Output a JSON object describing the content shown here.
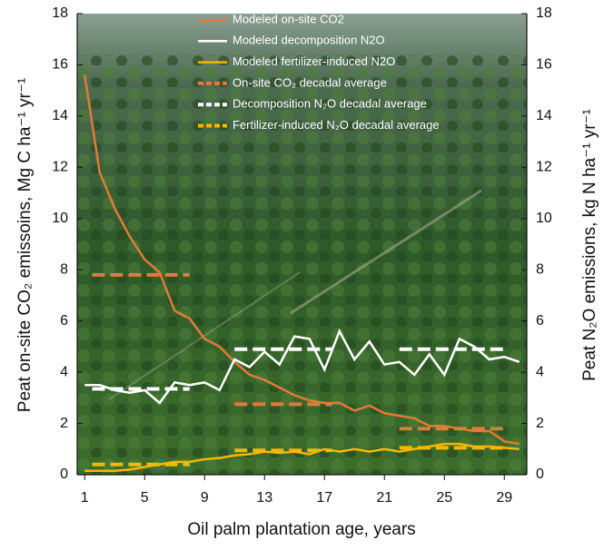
{
  "chart_data": {
    "type": "line",
    "xlabel": "Oil palm plantation age, years",
    "ylabel": "Peat on-site CO₂ emissoins, Mg C ha⁻¹ yr⁻¹",
    "y2label": "Peat N₂O emissions, kg N ha⁻¹ yr⁻¹",
    "x": [
      1,
      2,
      3,
      4,
      5,
      6,
      7,
      8,
      9,
      10,
      11,
      12,
      13,
      14,
      15,
      16,
      17,
      18,
      19,
      20,
      21,
      22,
      23,
      24,
      25,
      26,
      27,
      28,
      29,
      30
    ],
    "xlim": [
      0.5,
      30.5
    ],
    "xticks": [
      1,
      5,
      9,
      13,
      17,
      21,
      25,
      29
    ],
    "ylim": [
      0,
      18
    ],
    "yticks": [
      0,
      2,
      4,
      6,
      8,
      10,
      12,
      14,
      16,
      18
    ],
    "y2lim": [
      0,
      18
    ],
    "y2ticks": [
      0,
      2,
      4,
      6,
      8,
      10,
      12,
      14,
      16,
      18
    ],
    "series": [
      {
        "name": "Modeled on-site CO2",
        "color": "#e07b39",
        "style": "solid",
        "values": [
          15.6,
          11.8,
          10.4,
          9.3,
          8.4,
          7.9,
          6.4,
          6.1,
          5.3,
          5.0,
          4.4,
          3.9,
          3.7,
          3.4,
          3.1,
          2.9,
          2.8,
          2.8,
          2.5,
          2.7,
          2.4,
          2.3,
          2.2,
          1.9,
          1.9,
          1.8,
          1.7,
          1.7,
          1.3,
          1.2
        ]
      },
      {
        "name": "Modeled decomposition N2O",
        "color": "#ffffff",
        "style": "solid",
        "axis": "y2",
        "values": [
          3.5,
          3.5,
          3.3,
          3.2,
          3.3,
          2.8,
          3.6,
          3.5,
          3.6,
          3.3,
          4.5,
          4.2,
          4.8,
          4.3,
          5.4,
          5.3,
          4.1,
          5.6,
          4.5,
          5.2,
          4.3,
          4.4,
          3.9,
          4.7,
          3.9,
          5.3,
          5.0,
          4.5,
          4.6,
          4.4
        ]
      },
      {
        "name": "Modeled fertilizer-induced N2O",
        "color": "#f5b800",
        "style": "solid",
        "axis": "y2",
        "values": [
          0.15,
          0.15,
          0.15,
          0.2,
          0.3,
          0.4,
          0.5,
          0.5,
          0.6,
          0.65,
          0.75,
          0.8,
          0.9,
          0.85,
          0.9,
          0.8,
          1.0,
          0.9,
          1.0,
          0.9,
          1.0,
          0.9,
          1.0,
          1.1,
          1.2,
          1.2,
          1.1,
          1.1,
          1.05,
          1.0
        ]
      },
      {
        "name": "On-site CO₂ decadal average",
        "color": "#e07b39",
        "style": "dashed",
        "x": [
          1.5,
          8,
          null,
          11,
          17.5,
          null,
          22,
          29
        ],
        "values": [
          7.8,
          7.8,
          null,
          2.75,
          2.75,
          null,
          1.8,
          1.8
        ]
      },
      {
        "name": "Decomposition N₂O decadal average",
        "color": "#ffffff",
        "style": "dashed",
        "axis": "y2",
        "x": [
          1.5,
          8,
          null,
          11,
          17.5,
          null,
          22,
          29
        ],
        "values": [
          3.35,
          3.35,
          null,
          4.9,
          4.9,
          null,
          4.9,
          4.9
        ]
      },
      {
        "name": "Fertilizer-induced N₂O decadal average",
        "color": "#f5b800",
        "style": "dashed",
        "axis": "y2",
        "x": [
          1.5,
          8,
          null,
          11,
          17.5,
          null,
          22,
          29
        ],
        "values": [
          0.4,
          0.4,
          null,
          0.95,
          0.95,
          null,
          1.05,
          1.05
        ]
      }
    ]
  }
}
